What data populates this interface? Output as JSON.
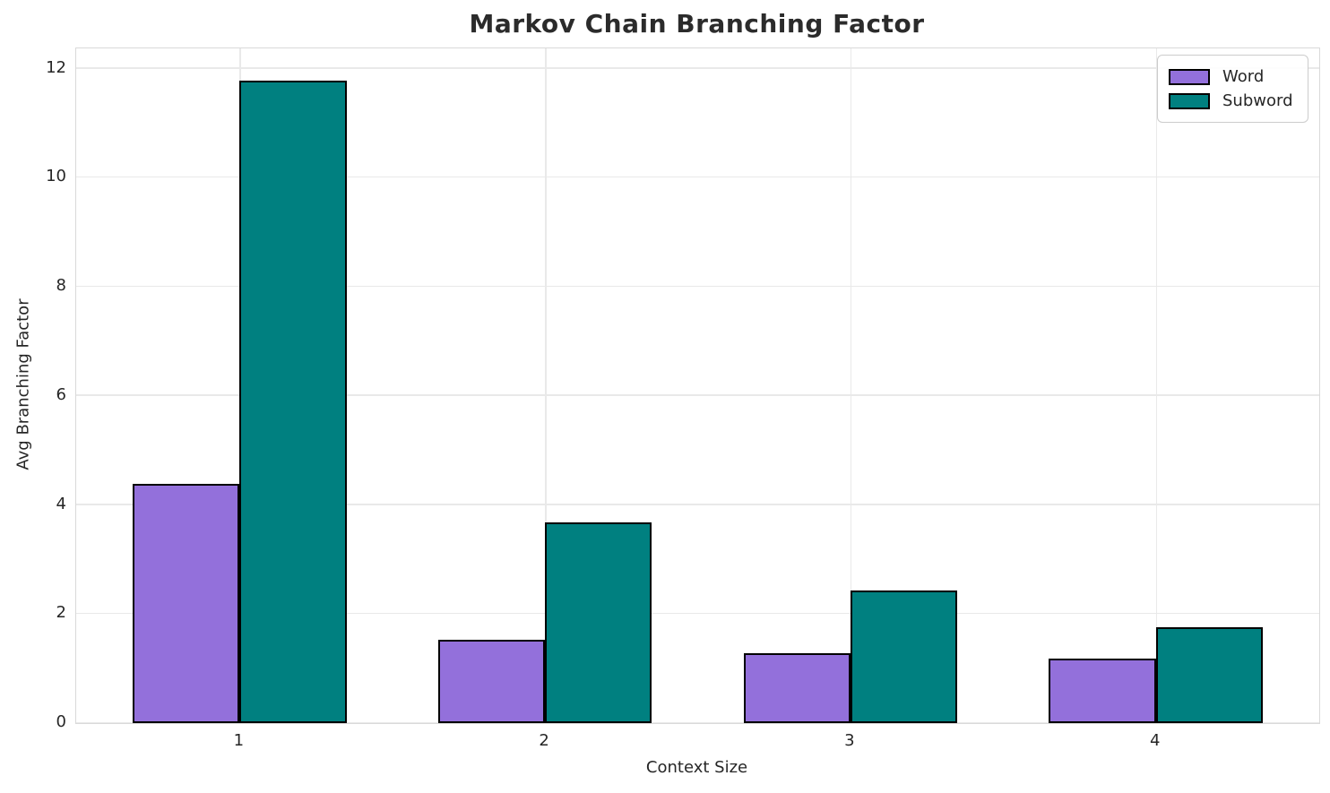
{
  "chart_data": {
    "type": "bar",
    "title": "Markov Chain Branching Factor",
    "xlabel": "Context Size",
    "ylabel": "Avg Branching Factor",
    "categories": [
      "1",
      "2",
      "3",
      "4"
    ],
    "x_positions": [
      1,
      2,
      3,
      4
    ],
    "series": [
      {
        "name": "Word",
        "color": "#9370DB",
        "values": [
          4.39,
          1.53,
          1.28,
          1.18
        ]
      },
      {
        "name": "Subword",
        "color": "#008080",
        "values": [
          11.78,
          3.68,
          2.43,
          1.76
        ]
      }
    ],
    "bar_width": 0.35,
    "bar_edge_color": "#000000",
    "xlim": [
      0.465,
      4.535
    ],
    "ylim": [
      0,
      12.37
    ],
    "yticks": [
      0,
      2,
      4,
      6,
      8,
      10,
      12
    ],
    "grid": true,
    "legend_position": "upper right"
  }
}
